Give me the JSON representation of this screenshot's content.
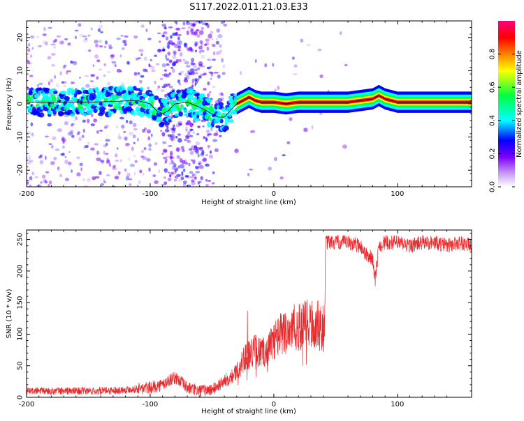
{
  "title": "S117.2022.011.21.03.E33",
  "chart_data": [
    {
      "type": "heatmap",
      "xlabel": "Height of straight line (km)",
      "ylabel": "Frequency (Hz)",
      "xlim": [
        -200,
        160
      ],
      "ylim": [
        -25,
        25
      ],
      "xticks": [
        -200,
        -100,
        0,
        100
      ],
      "yticks": [
        -20,
        -10,
        0,
        10,
        20
      ],
      "grid": false,
      "colorbar": {
        "label": "Normalized spectral amplitude",
        "range": [
          0,
          1
        ],
        "ticks": [
          "0.0",
          "0.2",
          "0.4",
          "0.6",
          "0.8"
        ],
        "colors": [
          "#ffffff",
          "#c89cf6",
          "#7b00ff",
          "#0000ff",
          "#00ffff",
          "#00ff40",
          "#ffff00",
          "#ff8000",
          "#ff0000",
          "#ff0080"
        ]
      },
      "center_line_profile": {
        "x": [
          -200,
          -150,
          -110,
          -100,
          -95,
          -90,
          -85,
          -80,
          -70,
          -60,
          -50,
          -45,
          -40,
          -35,
          -30,
          -25,
          -20,
          -15,
          -10,
          0,
          10,
          20,
          40,
          60,
          80,
          85,
          90,
          100,
          120,
          140,
          160
        ],
        "y": [
          0.5,
          0.5,
          1,
          0,
          -2,
          -3,
          -2,
          0,
          0.5,
          -1,
          -3,
          -4,
          -4,
          -2,
          0,
          1,
          2,
          1,
          0.5,
          0.5,
          0,
          0.5,
          0.5,
          0.5,
          1.5,
          2.5,
          1.5,
          0.5,
          0.5,
          0.5,
          0.5
        ]
      },
      "peak_amplitude_band_x": [
        -30,
        160
      ]
    },
    {
      "type": "line",
      "xlabel": "Height of straight line (km)",
      "ylabel": "SNR (10 * v/v)",
      "xlim": [
        -200,
        160
      ],
      "ylim": [
        0,
        265
      ],
      "xticks": [
        -200,
        -100,
        0,
        100
      ],
      "yticks": [
        0,
        50,
        100,
        150,
        200,
        250
      ],
      "grid": false,
      "series_color": "#e8282b",
      "x": [
        -200,
        -180,
        -160,
        -140,
        -120,
        -100,
        -90,
        -82,
        -78,
        -70,
        -60,
        -50,
        -40,
        -30,
        -25,
        -20,
        -15,
        -10,
        -5,
        0,
        5,
        10,
        15,
        20,
        25,
        30,
        35,
        40,
        41,
        42,
        50,
        60,
        70,
        75,
        80,
        82,
        85,
        90,
        100,
        110,
        120,
        130,
        140,
        150,
        160
      ],
      "values": [
        10,
        10,
        10,
        10,
        12,
        15,
        20,
        30,
        30,
        15,
        10,
        12,
        25,
        40,
        60,
        70,
        75,
        70,
        75,
        90,
        100,
        105,
        110,
        110,
        115,
        115,
        115,
        110,
        105,
        245,
        245,
        245,
        240,
        225,
        220,
        185,
        240,
        245,
        245,
        240,
        245,
        245,
        240,
        245,
        240
      ]
    }
  ]
}
